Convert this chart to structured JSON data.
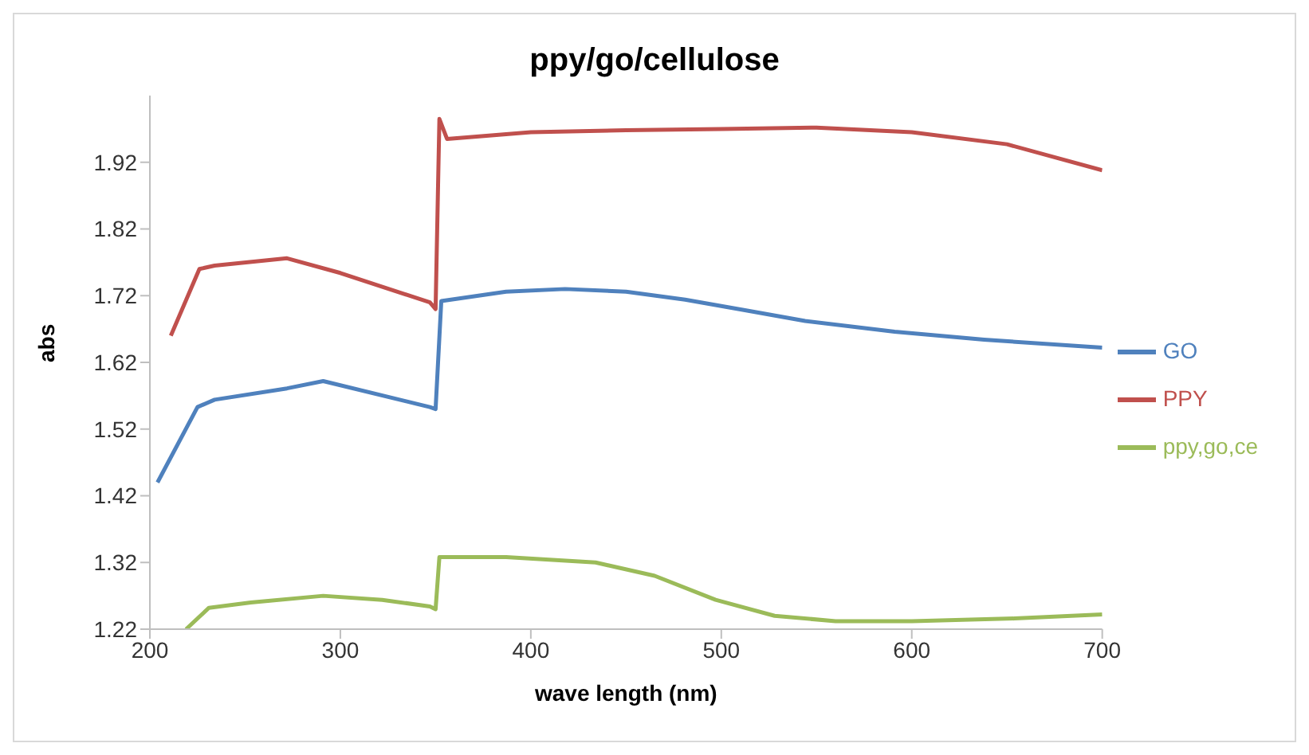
{
  "chart_data": {
    "type": "line",
    "title": "ppy/go/cellulose",
    "xlabel": "wave length (nm)",
    "ylabel": "abs",
    "xlim": [
      200,
      700
    ],
    "xticks": [
      200,
      300,
      400,
      500,
      600,
      700
    ],
    "ylim": [
      1.22,
      2.02
    ],
    "yticks": [
      1.22,
      1.32,
      1.42,
      1.52,
      1.62,
      1.72,
      1.82,
      1.92
    ],
    "grid": false,
    "legend": "right",
    "marker": "none",
    "line_style": "solid",
    "series": [
      {
        "name": "PPY",
        "color": "#c0504d",
        "x": [
          211,
          226,
          234,
          272,
          300,
          347,
          350,
          352,
          356,
          400,
          450,
          500,
          550,
          600,
          650,
          700
        ],
        "values": [
          1.66,
          1.76,
          1.765,
          1.776,
          1.754,
          1.71,
          1.7,
          1.985,
          1.955,
          1.965,
          1.968,
          1.97,
          1.972,
          1.965,
          1.947,
          1.908
        ]
      },
      {
        "name": "ppy,go,ce",
        "color": "#9bbb59",
        "x": [
          219,
          231,
          253,
          291,
          322,
          347,
          350,
          352,
          387,
          434,
          465,
          497,
          528,
          560,
          600,
          654,
          700
        ],
        "values": [
          1.22,
          1.252,
          1.26,
          1.27,
          1.264,
          1.254,
          1.25,
          1.328,
          1.328,
          1.32,
          1.3,
          1.264,
          1.24,
          1.232,
          1.232,
          1.236,
          1.242
        ]
      },
      {
        "name": "GO",
        "color": "#4f81bd",
        "x": [
          204,
          225,
          234,
          272,
          291,
          347,
          350,
          353,
          387,
          418,
          450,
          481,
          513,
          544,
          591,
          638,
          700
        ],
        "values": [
          1.44,
          1.553,
          1.564,
          1.581,
          1.592,
          1.553,
          1.55,
          1.712,
          1.726,
          1.73,
          1.726,
          1.714,
          1.698,
          1.682,
          1.666,
          1.654,
          1.642
        ]
      }
    ]
  }
}
